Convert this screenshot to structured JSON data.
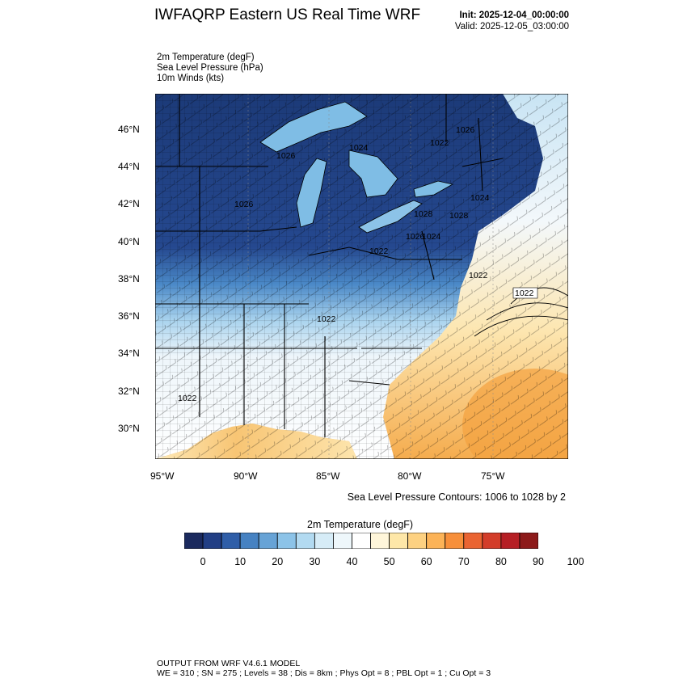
{
  "header": {
    "title": "IWFAQRP Eastern US Real Time WRF",
    "init": "Init: 2025-12-04_00:00:00",
    "valid": "Valid: 2025-12-05_03:00:00"
  },
  "fields": [
    "2m Temperature   (degF)",
    "Sea Level Pressure   (hPa)",
    "10m Winds   (kts)"
  ],
  "map": {
    "lat_labels": [
      "46°N",
      "44°N",
      "42°N",
      "40°N",
      "38°N",
      "36°N",
      "34°N",
      "32°N",
      "30°N"
    ],
    "lon_labels": [
      "95°W",
      "90°W",
      "85°W",
      "80°W",
      "75°W"
    ],
    "pressure_labels": [
      "1026",
      "1026",
      "1024",
      "1022",
      "1024",
      "1026",
      "1028",
      "1028",
      "1026",
      "1024",
      "1022",
      "1022",
      "1022",
      "1022",
      "1022"
    ],
    "colors": {
      "land_base": "#1c3a78",
      "ocean": "#fdf0c8",
      "gulf": "#f9c97a",
      "atlantic_warm": "#f4a947",
      "lake": "#7fbde5"
    }
  },
  "contour_note": "Sea Level Pressure Contours: 1006 to 1028 by 2",
  "colorbar": {
    "title": "2m Temperature  (degF)",
    "labels": [
      "0",
      "10",
      "20",
      "30",
      "40",
      "50",
      "60",
      "70",
      "80",
      "90",
      "100"
    ],
    "colors": [
      "#1b2a5e",
      "#223f85",
      "#2f5ea8",
      "#4682c2",
      "#67a3d6",
      "#8cc3e8",
      "#b2daf1",
      "#d6ecf7",
      "#eef7fb",
      "#ffffff",
      "#fff6da",
      "#fee7a8",
      "#fdd181",
      "#fcb357",
      "#f78f3a",
      "#ea6432",
      "#d33d2a",
      "#b61f25",
      "#8d1a1a"
    ]
  },
  "footer": {
    "line1": "OUTPUT FROM WRF V4.6.1 MODEL",
    "line2": "WE = 310 ; SN = 275 ; Levels = 38 ; Dis = 8km ; Phys Opt = 8 ; PBL Opt = 1 ; Cu Opt = 3"
  }
}
